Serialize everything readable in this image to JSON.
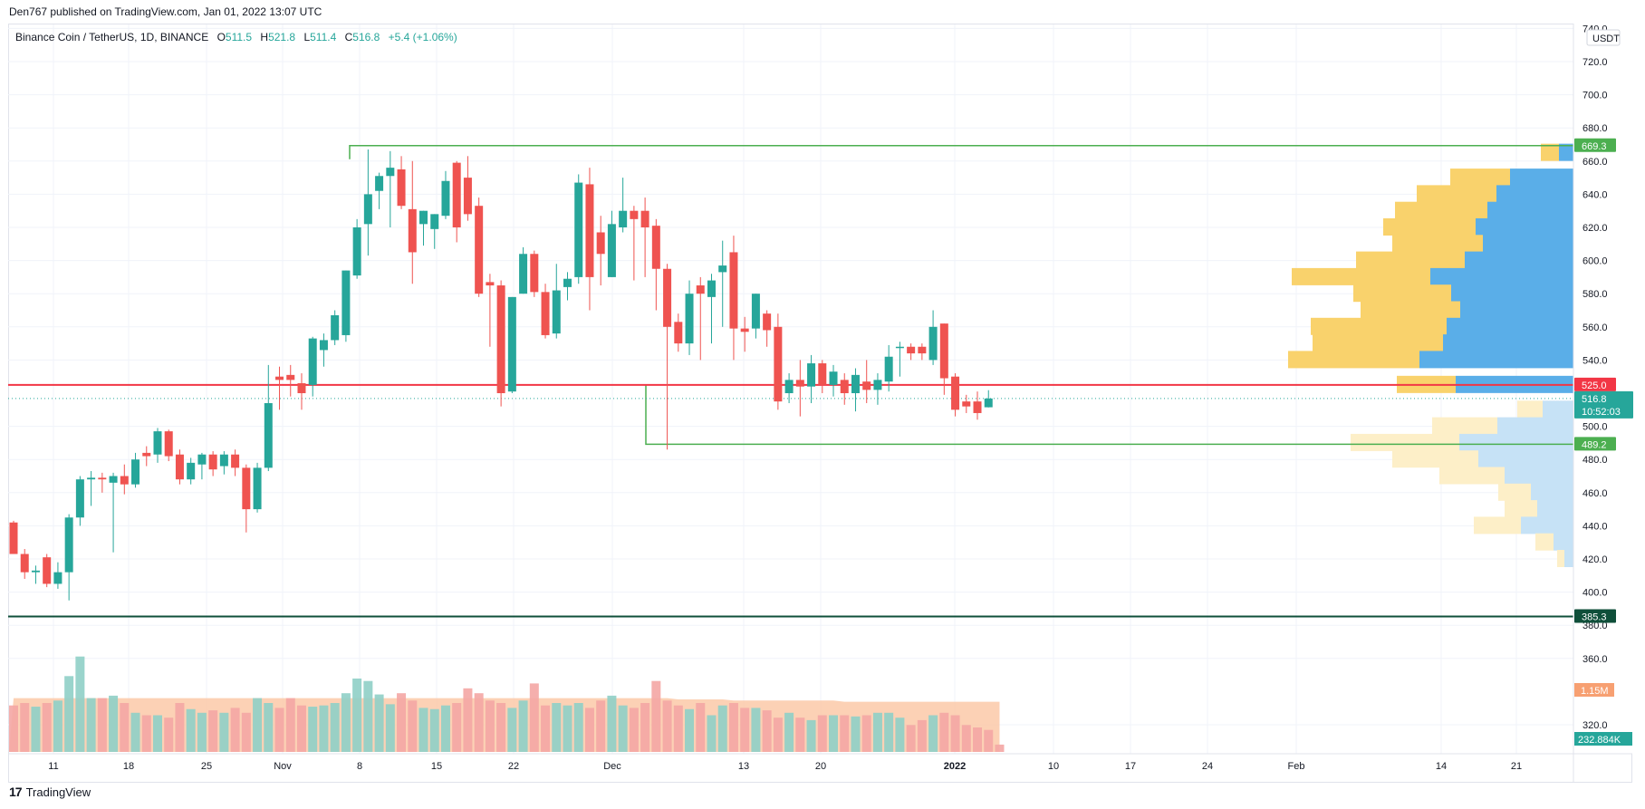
{
  "publish_line": "Den767 published on TradingView.com, Jan 01, 2022 13:07 UTC",
  "legend": {
    "symbol": "Binance Coin / TetherUS, 1D, BINANCE",
    "open_label": "O",
    "open": "511.5",
    "high_label": "H",
    "high": "521.8",
    "low_label": "L",
    "low": "511.4",
    "close_label": "C",
    "close": "516.8",
    "change": "+5.4 (+1.06%)"
  },
  "footer": {
    "brand": "TradingView",
    "logo_mark": "17"
  },
  "colors": {
    "up": "#26a69a",
    "down": "#ef5350",
    "vol_up": "#8fcfc6",
    "vol_down": "#f4a6a4",
    "vol_ma": "#fcc9a8",
    "vp_up": "#f9d26c",
    "vp_down": "#5aaee8",
    "vp_up_light": "#fdefc8",
    "vp_down_light": "#c6e2f6",
    "range_box": "#4caf50",
    "resistance": "#f23645",
    "support": "#0f4f3a"
  },
  "chart_data": {
    "type": "candlestick",
    "title": "Binance Coin / TetherUS, 1D, BINANCE",
    "currency": "USDT",
    "ylim": [
      305,
      745
    ],
    "y_ticks": [
      "740.0",
      "720.0",
      "700.0",
      "680.0",
      "660.0",
      "640.0",
      "620.0",
      "600.0",
      "580.0",
      "560.0",
      "540.0",
      "500.0",
      "480.0",
      "460.0",
      "440.0",
      "420.0",
      "400.0",
      "380.0",
      "360.0",
      "320.0"
    ],
    "x_ticks": [
      "11",
      "18",
      "25",
      "Nov",
      "8",
      "15",
      "22",
      "Dec",
      "13",
      "20",
      "2022",
      "10",
      "17",
      "24",
      "Feb",
      "14",
      "21"
    ],
    "first_date": "2021-10-09",
    "candles": [
      [
        "2021-10-09",
        442,
        423,
        443,
        423
      ],
      [
        "2021-10-10",
        423,
        412,
        426,
        408
      ],
      [
        "2021-10-11",
        412,
        413,
        416,
        405
      ],
      [
        "2021-10-12",
        421,
        405,
        423,
        403
      ],
      [
        "2021-10-13",
        405,
        412,
        418,
        402
      ],
      [
        "2021-10-14",
        412,
        445,
        447,
        395
      ],
      [
        "2021-10-15",
        445,
        468,
        470,
        440
      ],
      [
        "2021-10-16",
        468,
        469,
        473,
        452
      ],
      [
        "2021-10-17",
        469,
        468,
        472,
        460
      ],
      [
        "2021-10-18",
        466,
        470,
        472,
        424
      ],
      [
        "2021-10-19",
        470,
        465,
        477,
        459
      ],
      [
        "2021-10-20",
        465,
        480,
        484,
        463
      ],
      [
        "2021-10-21",
        484,
        482,
        488,
        476
      ],
      [
        "2021-10-22",
        483,
        497,
        499,
        478
      ],
      [
        "2021-10-23",
        497,
        482,
        498,
        479
      ],
      [
        "2021-10-24",
        483,
        468,
        486,
        465
      ],
      [
        "2021-10-25",
        468,
        478,
        481,
        465
      ],
      [
        "2021-10-26",
        477,
        483,
        484,
        468
      ],
      [
        "2021-10-27",
        483,
        474,
        485,
        470
      ],
      [
        "2021-10-28",
        476,
        483,
        485,
        471
      ],
      [
        "2021-10-29",
        483,
        475,
        486,
        470
      ],
      [
        "2021-10-30",
        475,
        450,
        477,
        436
      ],
      [
        "2021-10-31",
        450,
        475,
        478,
        448
      ],
      [
        "2021-11-01",
        475,
        514,
        537,
        473
      ],
      [
        "2021-11-02",
        530,
        528,
        536,
        510
      ],
      [
        "2021-11-03",
        531,
        528,
        537,
        518
      ],
      [
        "2021-11-04",
        526,
        520,
        532,
        510
      ],
      [
        "2021-11-05",
        525,
        553,
        554,
        518
      ],
      [
        "2021-11-06",
        546,
        552,
        556,
        536
      ],
      [
        "2021-11-07",
        552,
        567,
        570,
        549
      ],
      [
        "2021-11-08",
        555,
        594,
        588,
        551
      ],
      [
        "2021-11-09",
        591,
        620,
        625,
        589
      ],
      [
        "2021-11-10",
        622,
        640,
        667,
        603
      ],
      [
        "2021-11-11",
        642,
        651,
        653,
        631
      ],
      [
        "2021-11-12",
        651,
        656,
        666,
        620
      ],
      [
        "2021-11-13",
        655,
        633,
        663,
        631
      ],
      [
        "2021-11-14",
        631,
        605,
        660,
        586
      ],
      [
        "2021-11-15",
        622,
        630,
        624,
        609
      ],
      [
        "2021-11-16",
        619,
        628,
        625,
        607
      ],
      [
        "2021-11-17",
        627,
        648,
        654,
        625
      ],
      [
        "2021-11-18",
        659,
        620,
        660,
        611
      ],
      [
        "2021-11-19",
        650,
        628,
        663,
        624
      ],
      [
        "2021-11-20",
        633,
        580,
        638,
        578
      ],
      [
        "2021-11-21",
        587,
        585,
        592,
        548
      ],
      [
        "2021-11-22",
        585,
        520,
        588,
        512
      ],
      [
        "2021-11-23",
        521,
        578,
        572,
        520
      ],
      [
        "2021-11-24",
        580,
        604,
        608,
        580
      ],
      [
        "2021-11-25",
        604,
        581,
        606,
        578
      ],
      [
        "2021-11-26",
        581,
        555,
        586,
        553
      ],
      [
        "2021-11-27",
        556,
        582,
        598,
        553
      ],
      [
        "2021-11-28",
        584,
        589,
        593,
        576
      ],
      [
        "2021-11-29",
        590,
        647,
        652,
        586
      ],
      [
        "2021-11-30",
        646,
        590,
        656,
        570
      ],
      [
        "2021-12-01",
        617,
        604,
        627,
        585
      ],
      [
        "2021-12-02",
        590,
        622,
        630,
        590
      ],
      [
        "2021-12-03",
        620,
        630,
        650,
        617
      ],
      [
        "2021-12-04",
        630,
        625,
        633,
        588
      ],
      [
        "2021-12-05",
        630,
        620,
        638,
        590
      ],
      [
        "2021-12-06",
        621,
        595,
        625,
        570
      ],
      [
        "2021-12-07",
        595,
        560,
        598,
        486
      ],
      [
        "2021-12-08",
        563,
        550,
        568,
        545
      ],
      [
        "2021-12-09",
        550,
        580,
        588,
        543
      ],
      [
        "2021-12-10",
        585,
        580,
        590,
        540
      ],
      [
        "2021-12-11",
        578,
        588,
        592,
        550
      ],
      [
        "2021-12-12",
        593,
        597,
        612,
        560
      ],
      [
        "2021-12-13",
        605,
        559,
        615,
        540
      ],
      [
        "2021-12-14",
        559,
        557,
        566,
        545
      ],
      [
        "2021-12-15",
        559,
        580,
        572,
        553
      ],
      [
        "2021-12-16",
        568,
        558,
        570,
        548
      ],
      [
        "2021-12-17",
        560,
        515,
        568,
        510
      ],
      [
        "2021-12-18",
        520,
        528,
        532,
        514
      ],
      [
        "2021-12-19",
        528,
        524,
        540,
        506
      ],
      [
        "2021-12-20",
        524,
        538,
        543,
        514
      ],
      [
        "2021-12-21",
        538,
        525,
        540,
        520
      ],
      [
        "2021-12-22",
        525,
        533,
        537,
        518
      ],
      [
        "2021-12-23",
        528,
        520,
        532,
        513
      ],
      [
        "2021-12-24",
        520,
        531,
        535,
        509
      ],
      [
        "2021-12-25",
        527,
        522,
        540,
        514
      ],
      [
        "2021-12-26",
        522,
        528,
        532,
        513
      ],
      [
        "2021-12-27",
        527,
        542,
        549,
        521
      ],
      [
        "2021-12-28",
        548,
        548,
        551,
        530
      ],
      [
        "2021-12-29",
        548,
        544,
        550,
        540
      ],
      [
        "2021-12-30",
        548,
        544,
        550,
        540
      ],
      [
        "2021-12-31",
        540,
        560,
        570,
        537
      ],
      [
        "2022-01-01",
        562,
        529,
        560,
        519
      ]
    ],
    "tail_candles": [
      [
        "a",
        530,
        510,
        532,
        506
      ],
      [
        "b",
        515,
        512,
        519,
        508
      ],
      [
        "c",
        515,
        508,
        521,
        504
      ],
      [
        "d",
        511.5,
        516.8,
        521.8,
        511.4
      ]
    ],
    "volume_series": {
      "name": "Volume",
      "last_value_label": "232.884K",
      "ma_label": "1.15M",
      "values": [
        38,
        40,
        37,
        40,
        42,
        62,
        78,
        44,
        44,
        46,
        40,
        32,
        30,
        30,
        28,
        40,
        35,
        32,
        34,
        32,
        36,
        32,
        44,
        40,
        36,
        44,
        38,
        37,
        38,
        40,
        48,
        60,
        58,
        47,
        39,
        48,
        42,
        36,
        35,
        38,
        40,
        52,
        48,
        42,
        40,
        36,
        42,
        56,
        38,
        40,
        38,
        40,
        36,
        42,
        46,
        38,
        36,
        40,
        58,
        42,
        38,
        35,
        40,
        30,
        38,
        40,
        36,
        36,
        34,
        28,
        32,
        28,
        26,
        30,
        30,
        30,
        29,
        30,
        32,
        32,
        28,
        22,
        26,
        30,
        32,
        30,
        22,
        20,
        18,
        6
      ],
      "ma_values": [
        44,
        44,
        44,
        44,
        44,
        44,
        44,
        44,
        44,
        44,
        44,
        44,
        44,
        44,
        44,
        44,
        44,
        44,
        44,
        44,
        44,
        44,
        44,
        44,
        44,
        44,
        44,
        44,
        44,
        44,
        44,
        44,
        44,
        44,
        44,
        44,
        44,
        44,
        44,
        44,
        44,
        44,
        44,
        44,
        44,
        44,
        44,
        44,
        44,
        44,
        44,
        44,
        44,
        44,
        44,
        44,
        44,
        44,
        44,
        44,
        43,
        43,
        43,
        43,
        43,
        42,
        42,
        42,
        42,
        42,
        42,
        42,
        42,
        42,
        42,
        41,
        41,
        41,
        41,
        41,
        41,
        41,
        41,
        41,
        41,
        41,
        41,
        41,
        41,
        41
      ]
    },
    "levels": [
      {
        "value": 669.3,
        "label": "669.3",
        "type": "range_top"
      },
      {
        "value": 525.0,
        "label": "525.0",
        "type": "resistance"
      },
      {
        "value": 516.8,
        "label": "516.8",
        "type": "last",
        "countdown": "10:52:03"
      },
      {
        "value": 489.2,
        "label": "489.2",
        "type": "range_bottom"
      },
      {
        "value": 385.3,
        "label": "385.3",
        "type": "support"
      }
    ],
    "volume_profile": [
      {
        "price": 665,
        "up": 20,
        "down": 16
      },
      {
        "price": 650,
        "up": 66,
        "down": 70
      },
      {
        "price": 640,
        "up": 88,
        "down": 85
      },
      {
        "price": 630,
        "up": 102,
        "down": 95
      },
      {
        "price": 620,
        "up": 102,
        "down": 108
      },
      {
        "price": 610,
        "up": 100,
        "down": 100
      },
      {
        "price": 600,
        "up": 120,
        "down": 120
      },
      {
        "price": 590,
        "up": 153,
        "down": 158
      },
      {
        "price": 580,
        "up": 108,
        "down": 135
      },
      {
        "price": 570,
        "up": 110,
        "down": 125
      },
      {
        "price": 560,
        "up": 150,
        "down": 140
      },
      {
        "price": 550,
        "up": 144,
        "down": 144
      },
      {
        "price": 540,
        "up": 145,
        "down": 170
      },
      {
        "price": 525,
        "up": 65,
        "down": 130
      },
      {
        "price": 510,
        "up": 28,
        "down": 34
      },
      {
        "price": 500,
        "up": 72,
        "down": 84
      },
      {
        "price": 490,
        "up": 120,
        "down": 126
      },
      {
        "price": 480,
        "up": 95,
        "down": 105
      },
      {
        "price": 470,
        "up": 72,
        "down": 76
      },
      {
        "price": 460,
        "up": 36,
        "down": 47
      },
      {
        "price": 450,
        "up": 36,
        "down": 40
      },
      {
        "price": 440,
        "up": 52,
        "down": 58
      },
      {
        "price": 430,
        "up": 20,
        "down": 22
      },
      {
        "price": 420,
        "up": 8,
        "down": 10
      }
    ]
  }
}
